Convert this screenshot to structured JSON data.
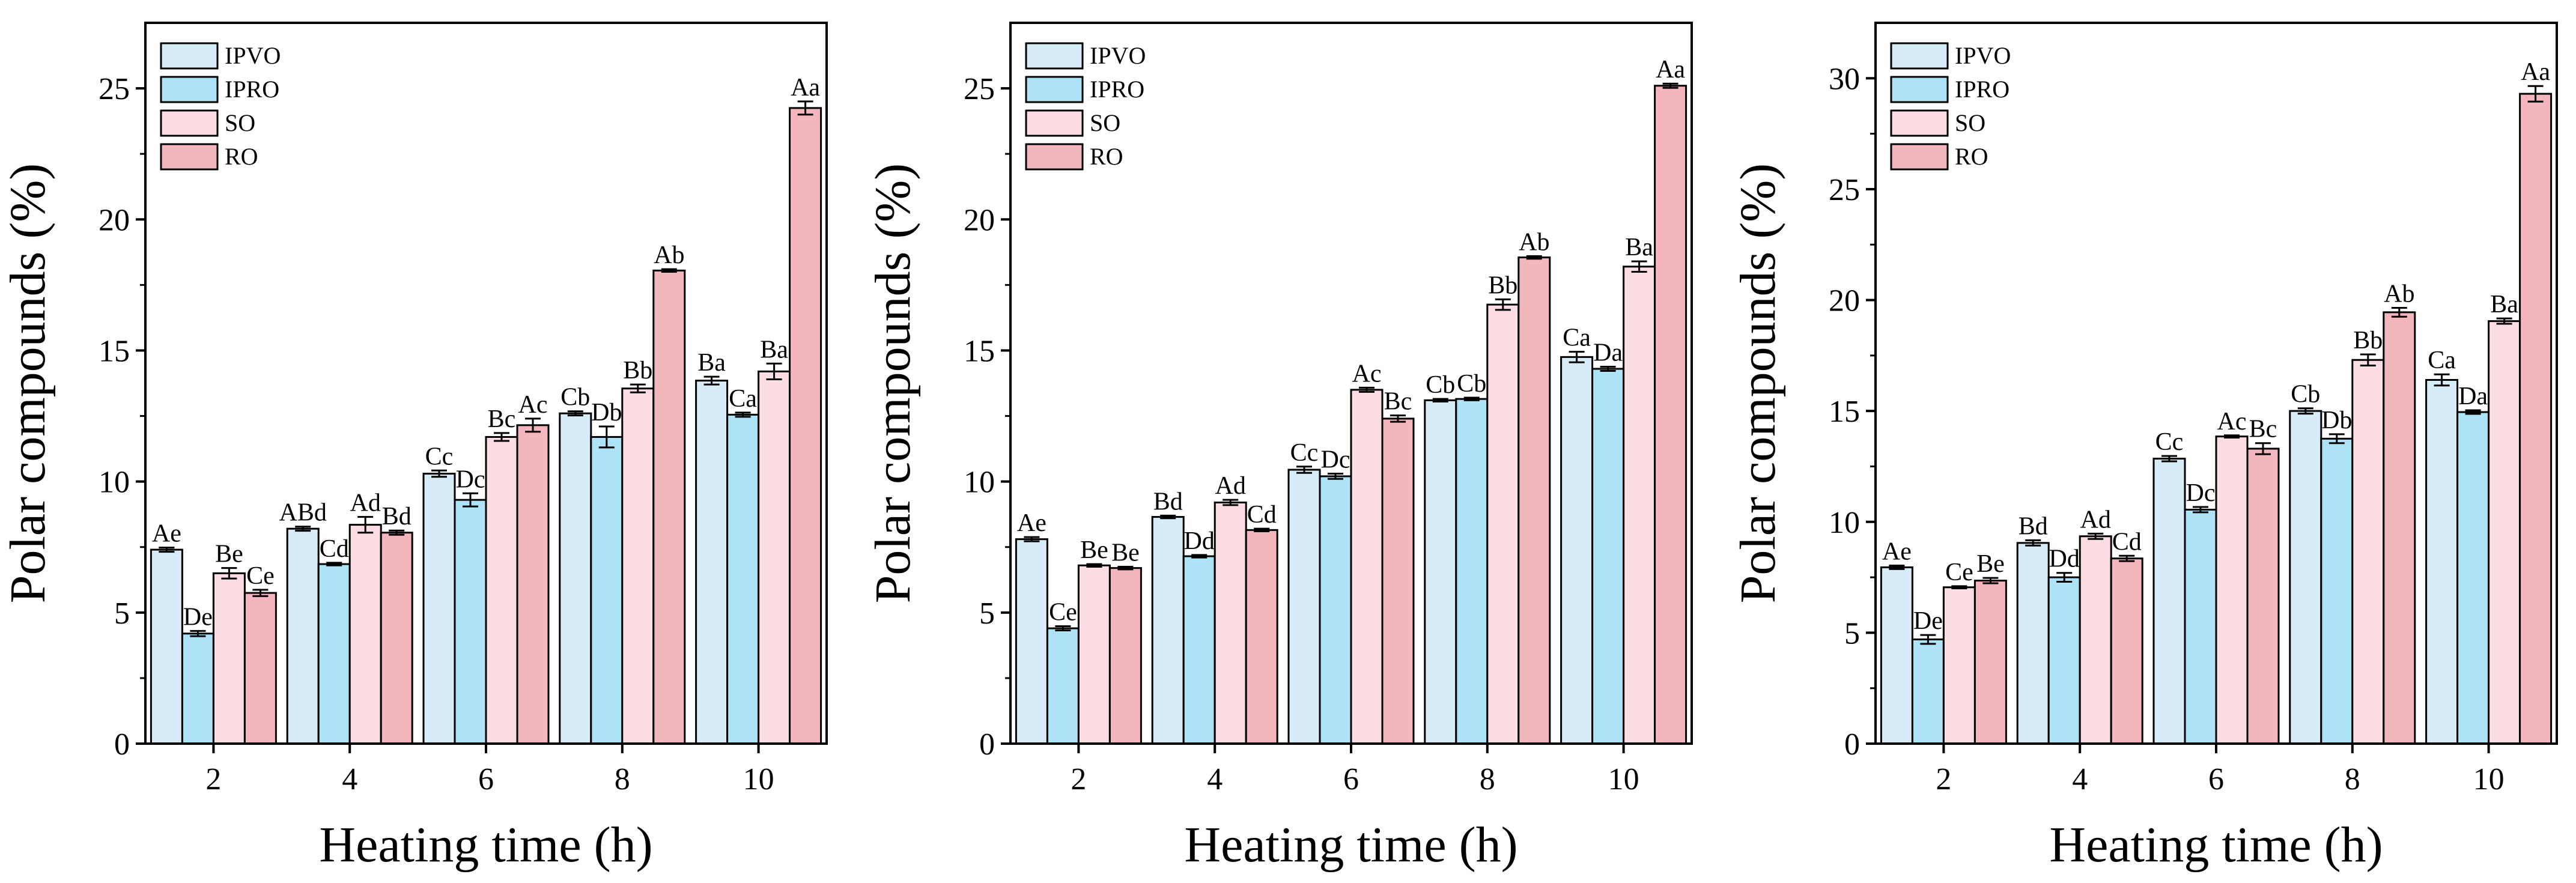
{
  "colors": {
    "IPVO": "#d6ecf8",
    "IPRO": "#aee2f6",
    "SO": "#fbdde3",
    "RO": "#f4b6bd",
    "stroke": "#000000"
  },
  "chart_data": [
    {
      "type": "bar",
      "title": "",
      "xlabel": "Heating time (h)",
      "ylabel": "Polar compounds (%)",
      "ylim": [
        0,
        27.5
      ],
      "yticks": [
        0,
        5,
        10,
        15,
        20,
        25
      ],
      "categories": [
        "2",
        "4",
        "6",
        "8",
        "10"
      ],
      "legend": {
        "position": "top-left",
        "entries": [
          "IPVO",
          "IPRO",
          "SO",
          "RO"
        ]
      },
      "series": [
        {
          "name": "IPVO",
          "values": [
            7.4,
            8.2,
            10.3,
            12.6,
            13.85
          ],
          "errors": [
            0.08,
            0.08,
            0.12,
            0.08,
            0.15
          ],
          "labels": [
            "Ae",
            "ABd",
            "Cc",
            "Cb",
            "Ba"
          ]
        },
        {
          "name": "IPRO",
          "values": [
            4.2,
            6.85,
            9.3,
            11.7,
            12.55
          ],
          "errors": [
            0.1,
            0.05,
            0.25,
            0.4,
            0.08
          ],
          "labels": [
            "De",
            "Cd",
            "Dc",
            "Db",
            "Ca"
          ]
        },
        {
          "name": "SO",
          "values": [
            6.5,
            8.35,
            11.7,
            13.55,
            14.2
          ],
          "errors": [
            0.2,
            0.3,
            0.15,
            0.15,
            0.3
          ],
          "labels": [
            "Be",
            "Ad",
            "Bc",
            "Bb",
            "Ba"
          ]
        },
        {
          "name": "RO",
          "values": [
            5.75,
            8.05,
            12.15,
            18.05,
            24.25
          ],
          "errors": [
            0.12,
            0.08,
            0.25,
            0.05,
            0.25
          ],
          "labels": [
            "Ce",
            "Bd",
            "Ac",
            "Ab",
            "Aa"
          ]
        }
      ]
    },
    {
      "type": "bar",
      "title": "",
      "xlabel": "Heating time (h)",
      "ylabel": "Polar compounds (%)",
      "ylim": [
        0,
        27.5
      ],
      "yticks": [
        0,
        5,
        10,
        15,
        20,
        25
      ],
      "categories": [
        "2",
        "4",
        "6",
        "8",
        "10"
      ],
      "legend": {
        "position": "top-left",
        "entries": [
          "IPVO",
          "IPRO",
          "SO",
          "RO"
        ]
      },
      "series": [
        {
          "name": "IPVO",
          "values": [
            7.8,
            8.65,
            10.45,
            13.1,
            14.75
          ],
          "errors": [
            0.08,
            0.05,
            0.12,
            0.05,
            0.2
          ],
          "labels": [
            "Ae",
            "Bd",
            "Cc",
            "Cb",
            "Ca"
          ]
        },
        {
          "name": "IPRO",
          "values": [
            4.4,
            7.15,
            10.2,
            13.15,
            14.3
          ],
          "errors": [
            0.08,
            0.05,
            0.1,
            0.05,
            0.08
          ],
          "labels": [
            "Ce",
            "Dd",
            "Dc",
            "Cb",
            "Da"
          ]
        },
        {
          "name": "SO",
          "values": [
            6.8,
            9.2,
            13.5,
            16.75,
            18.2
          ],
          "errors": [
            0.05,
            0.1,
            0.08,
            0.2,
            0.2
          ],
          "labels": [
            "Be",
            "Ad",
            "Ac",
            "Bb",
            "Ba"
          ]
        },
        {
          "name": "RO",
          "values": [
            6.7,
            8.15,
            12.4,
            18.55,
            25.1
          ],
          "errors": [
            0.05,
            0.05,
            0.12,
            0.05,
            0.08
          ],
          "labels": [
            "Be",
            "Cd",
            "Bc",
            "Ab",
            "Aa"
          ]
        }
      ]
    },
    {
      "type": "bar",
      "title": "",
      "xlabel": "Heating time (h)",
      "ylabel": "Polar compounds (%)",
      "ylim": [
        0,
        32.5
      ],
      "yticks": [
        0,
        5,
        10,
        15,
        20,
        25,
        30
      ],
      "categories": [
        "2",
        "4",
        "6",
        "8",
        "10"
      ],
      "legend": {
        "position": "top-left",
        "entries": [
          "IPVO",
          "IPRO",
          "SO",
          "RO"
        ]
      },
      "series": [
        {
          "name": "IPVO",
          "values": [
            7.95,
            9.05,
            12.85,
            15.0,
            16.4
          ],
          "errors": [
            0.08,
            0.12,
            0.12,
            0.12,
            0.25
          ],
          "labels": [
            "Ae",
            "Bd",
            "Cc",
            "Cb",
            "Ca"
          ]
        },
        {
          "name": "IPRO",
          "values": [
            4.7,
            7.5,
            10.55,
            13.75,
            14.95
          ],
          "errors": [
            0.2,
            0.2,
            0.12,
            0.2,
            0.08
          ],
          "labels": [
            "De",
            "Dd",
            "Dc",
            "Db",
            "Da"
          ]
        },
        {
          "name": "SO",
          "values": [
            7.05,
            9.35,
            13.85,
            17.3,
            19.05
          ],
          "errors": [
            0.05,
            0.12,
            0.05,
            0.25,
            0.12
          ],
          "labels": [
            "Ce",
            "Ad",
            "Ac",
            "Bb",
            "Ba"
          ]
        },
        {
          "name": "RO",
          "values": [
            7.35,
            8.35,
            13.3,
            19.45,
            29.3
          ],
          "errors": [
            0.12,
            0.12,
            0.25,
            0.2,
            0.35
          ],
          "labels": [
            "Be",
            "Cd",
            "Bc",
            "Ab",
            "Aa"
          ]
        }
      ]
    }
  ]
}
